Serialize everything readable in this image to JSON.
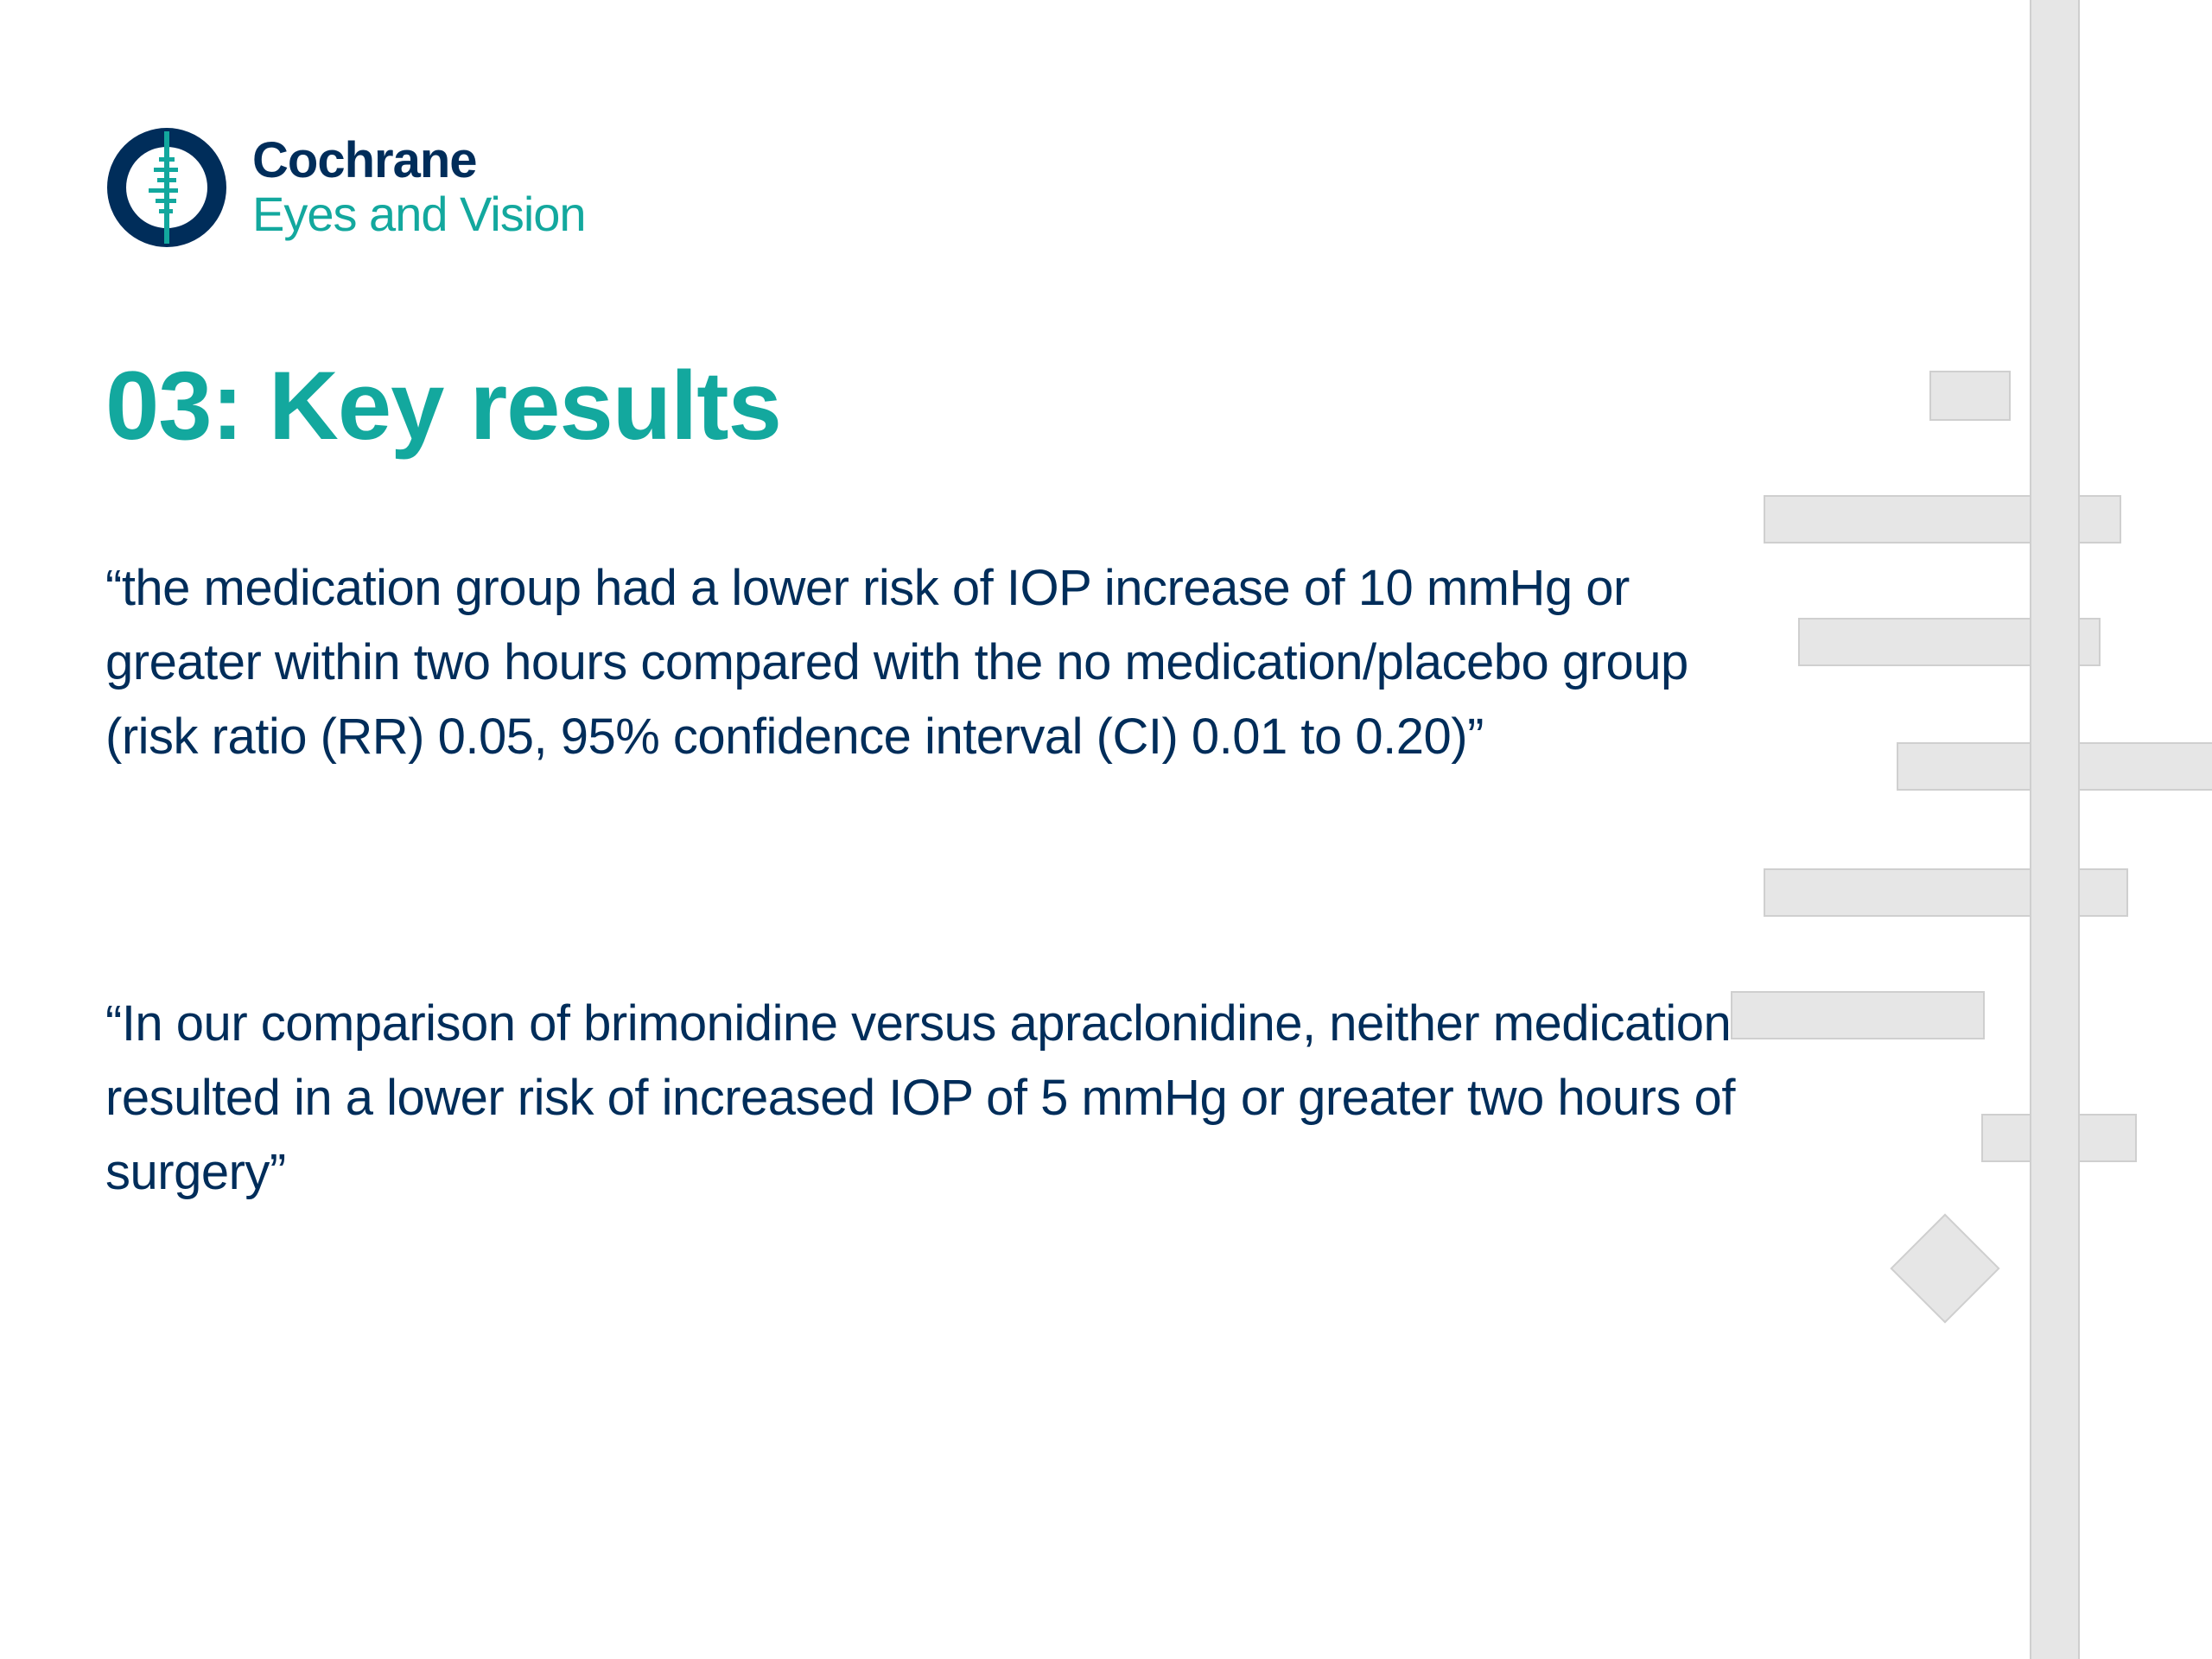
{
  "logo": {
    "line1": "Cochrane",
    "line2": "Eyes and Vision",
    "icon": "cochrane-logo-icon"
  },
  "title": "03: Key results",
  "quotes": [
    "“the medication group had a lower risk of IOP increase of 10 mmHg or greater within two hours compared with the no medication/placebo group (risk ratio (RR) 0.05, 95% confidence interval (CI) 0.01 to 0.20)”",
    "“In our comparison of brimonidine versus apraclonidine, neither medication resulted in a lower risk of increased IOP of 5 mmHg or greater two hours of surgery”"
  ],
  "colors": {
    "navy": "#002d5a",
    "teal": "#13a89e",
    "decor_fill": "#e6e6e6",
    "decor_stroke": "#cfcfcf"
  }
}
